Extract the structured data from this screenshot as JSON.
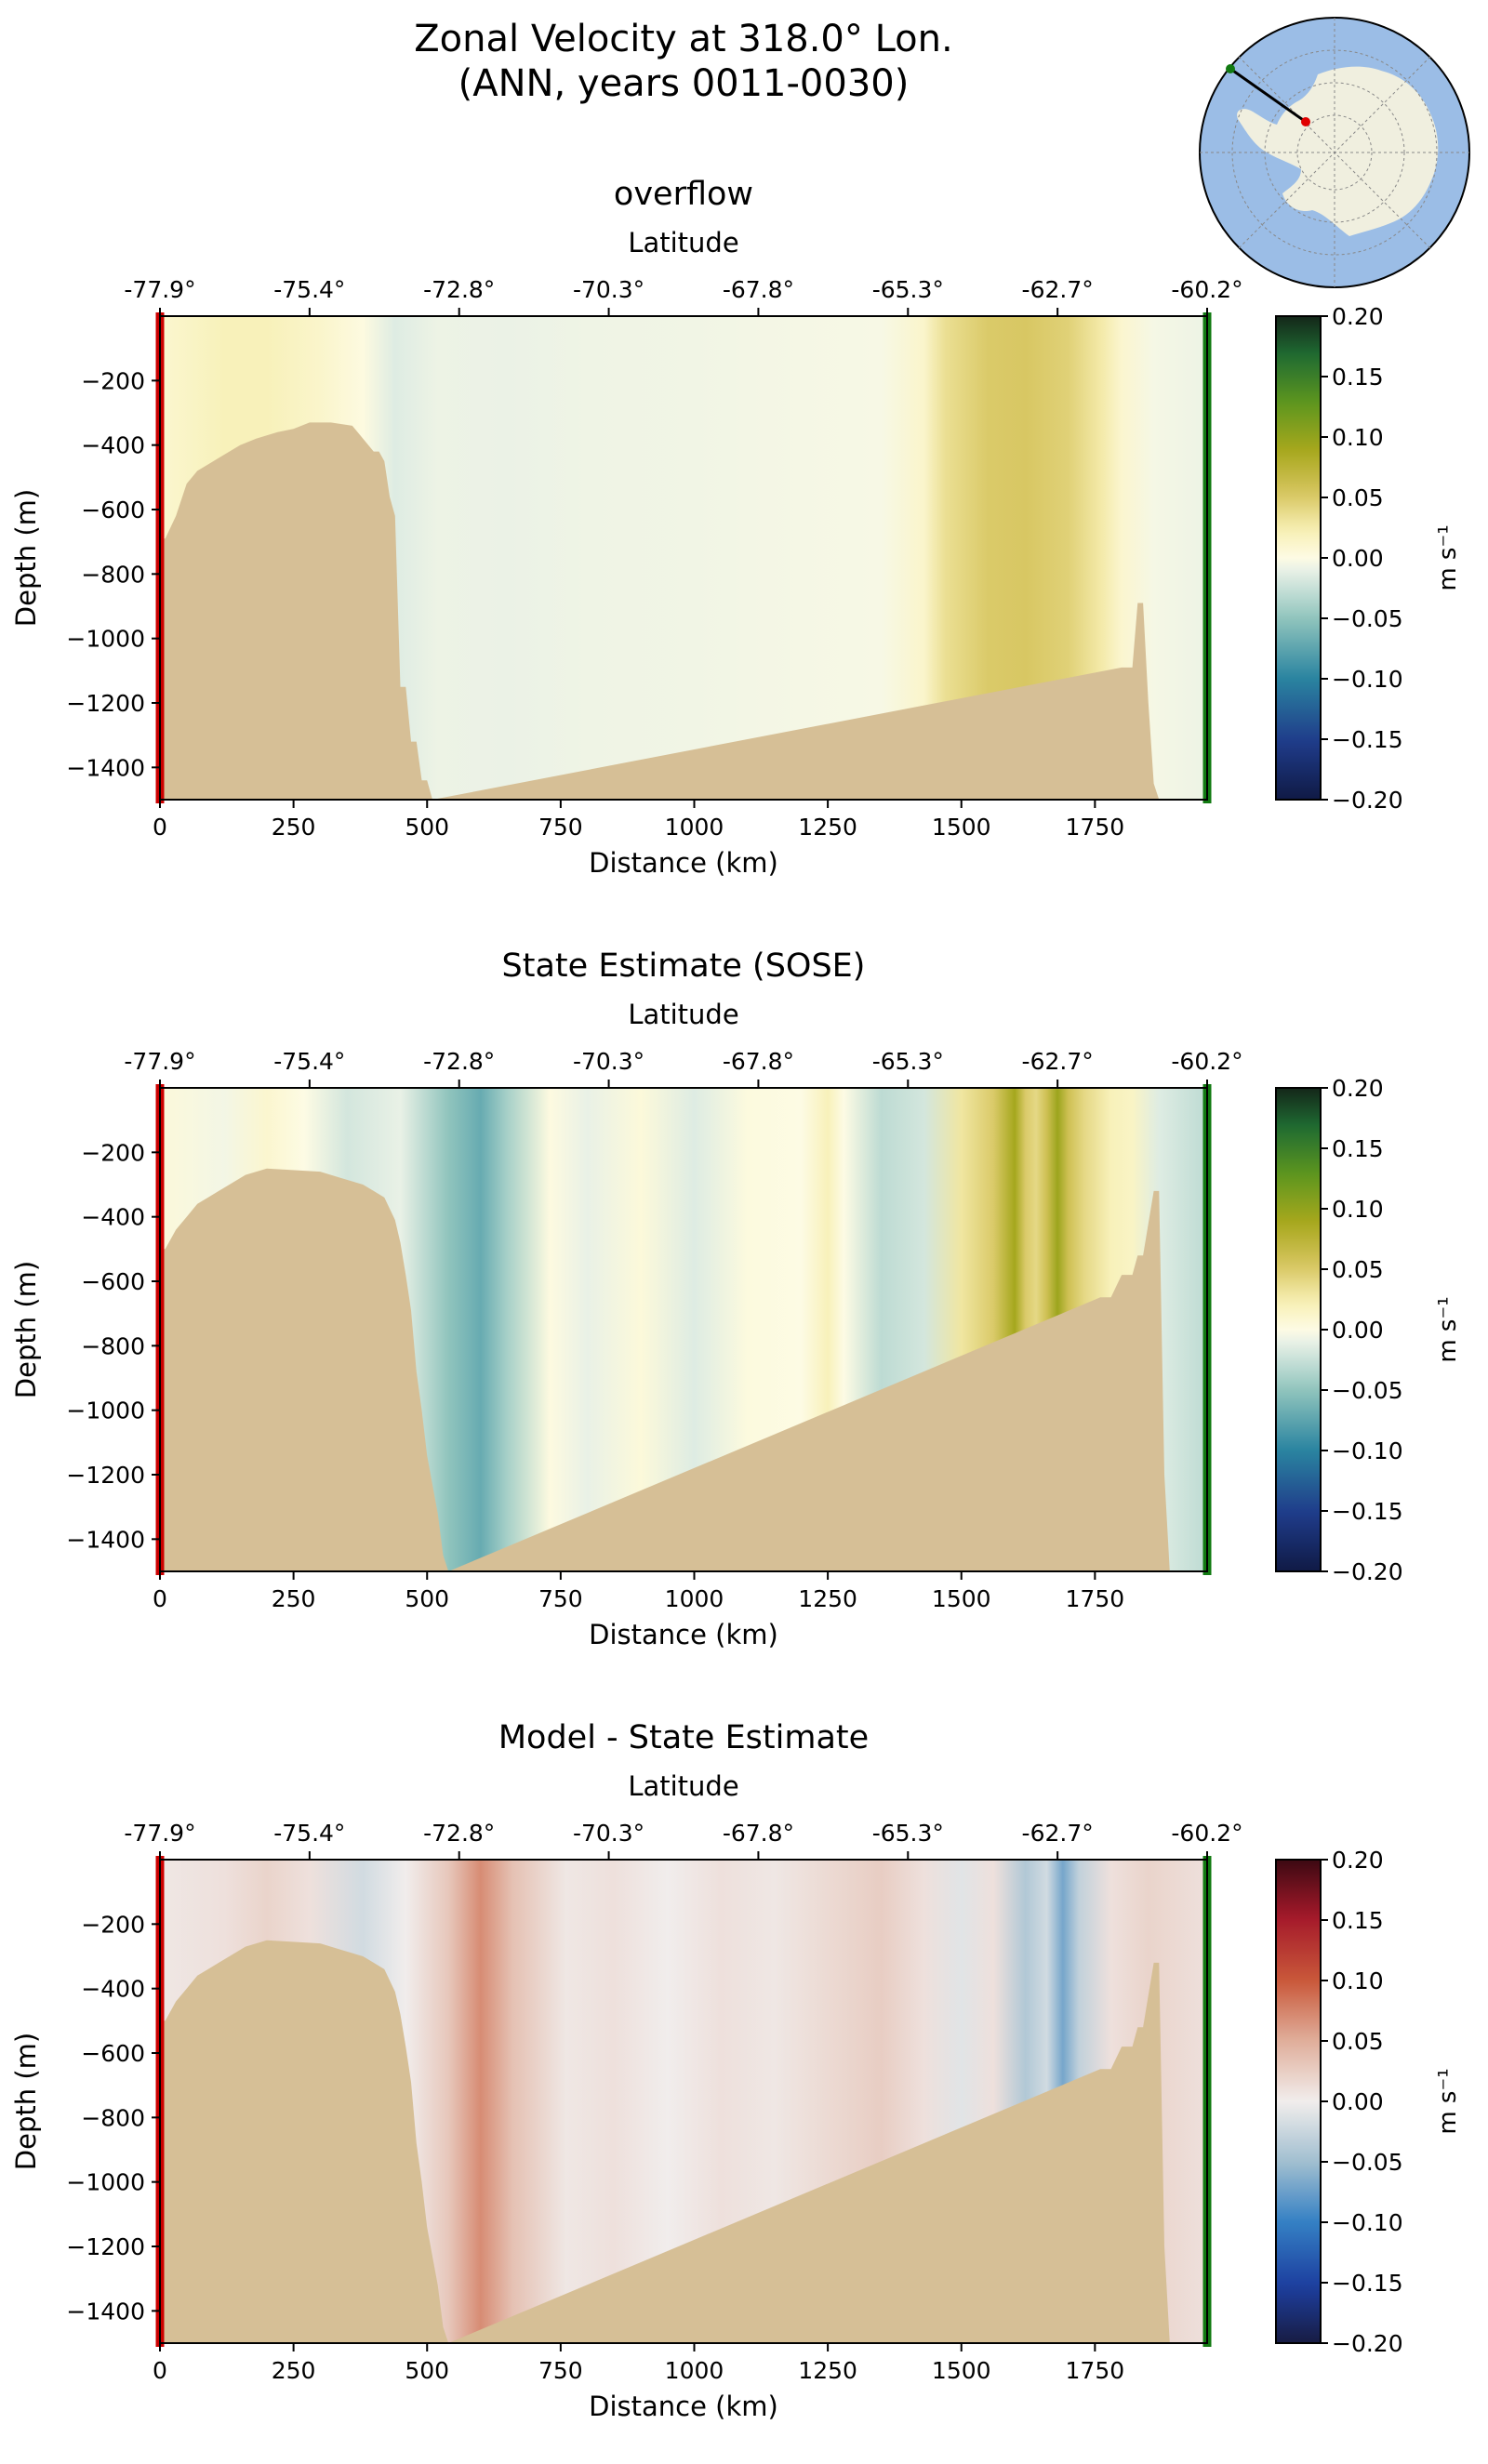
{
  "figure": {
    "title_line1": "Zonal Velocity at 318.0° Lon.",
    "title_line2": "(ANN, years 0011-0030)"
  },
  "colors": {
    "topography": "#d6bf96",
    "start_marker": "#cc0000",
    "end_marker": "#117a11",
    "ocean": "#9bbde6",
    "land": "#f0efdf"
  },
  "chart_data": [
    {
      "type": "heatmap",
      "title": "overflow",
      "xlabel": "Distance (km)",
      "ylabel": "Depth (m)",
      "top_axis_label": "Latitude",
      "xlim": [
        0,
        1960
      ],
      "ylim": [
        -1500,
        0
      ],
      "x_ticks": [
        0,
        250,
        500,
        750,
        1000,
        1250,
        1500,
        1750
      ],
      "y_ticks": [
        -200,
        -400,
        -600,
        -800,
        -1000,
        -1200,
        -1400
      ],
      "lat_ticks": [
        {
          "km": 0,
          "label": "-77.9°"
        },
        {
          "km": 280,
          "label": "-75.4°"
        },
        {
          "km": 560,
          "label": "-72.8°"
        },
        {
          "km": 840,
          "label": "-70.3°"
        },
        {
          "km": 1120,
          "label": "-67.8°"
        },
        {
          "km": 1400,
          "label": "-65.3°"
        },
        {
          "km": 1680,
          "label": "-62.7°"
        },
        {
          "km": 1960,
          "label": "-60.2°"
        }
      ],
      "colorbar": {
        "label": "m s⁻¹",
        "ticks": [
          "0.20",
          "0.15",
          "0.10",
          "0.05",
          "0.00",
          "−0.05",
          "−0.10",
          "−0.15",
          "−0.20"
        ],
        "range": [
          -0.2,
          0.2
        ],
        "colormap": "delta"
      },
      "velocity_profile_km": [
        0,
        60,
        120,
        200,
        300,
        380,
        440,
        520,
        650,
        800,
        1000,
        1200,
        1350,
        1430,
        1470,
        1550,
        1620,
        1700,
        1760,
        1800,
        1860,
        1960
      ],
      "velocity_profile_ms": [
        0.01,
        0.015,
        0.02,
        0.02,
        0.012,
        0.002,
        -0.015,
        -0.008,
        -0.009,
        -0.007,
        -0.006,
        -0.004,
        -0.003,
        0.012,
        0.035,
        0.05,
        0.052,
        0.045,
        0.028,
        0.01,
        -0.004,
        -0.008
      ],
      "bathymetry_km": [
        0,
        10,
        30,
        50,
        70,
        90,
        110,
        130,
        150,
        180,
        200,
        220,
        250,
        280,
        320,
        360,
        400,
        410,
        420,
        430,
        440,
        450,
        460,
        470,
        480,
        490,
        500,
        510,
        1800,
        1820,
        1830,
        1840,
        1850,
        1860,
        1870,
        1960
      ],
      "bathymetry_depth": [
        -690,
        -690,
        -620,
        -520,
        -480,
        -460,
        -440,
        -420,
        -400,
        -380,
        -370,
        -360,
        -350,
        -330,
        -330,
        -340,
        -420,
        -420,
        -450,
        -560,
        -620,
        -1150,
        -1150,
        -1320,
        -1320,
        -1440,
        -1440,
        -1500,
        -1090,
        -1090,
        -890,
        -890,
        -1200,
        -1450,
        -1500,
        -1500
      ]
    },
    {
      "type": "heatmap",
      "title": "State Estimate (SOSE)",
      "xlabel": "Distance (km)",
      "ylabel": "Depth (m)",
      "top_axis_label": "Latitude",
      "xlim": [
        0,
        1960
      ],
      "ylim": [
        -1500,
        0
      ],
      "x_ticks": [
        0,
        250,
        500,
        750,
        1000,
        1250,
        1500,
        1750
      ],
      "y_ticks": [
        -200,
        -400,
        -600,
        -800,
        -1000,
        -1200,
        -1400
      ],
      "lat_ticks": [
        {
          "km": 0,
          "label": "-77.9°"
        },
        {
          "km": 280,
          "label": "-75.4°"
        },
        {
          "km": 560,
          "label": "-72.8°"
        },
        {
          "km": 840,
          "label": "-70.3°"
        },
        {
          "km": 1120,
          "label": "-67.8°"
        },
        {
          "km": 1400,
          "label": "-65.3°"
        },
        {
          "km": 1680,
          "label": "-62.7°"
        },
        {
          "km": 1960,
          "label": "-60.2°"
        }
      ],
      "colorbar": {
        "label": "m s⁻¹",
        "ticks": [
          "0.20",
          "0.15",
          "0.10",
          "0.05",
          "0.00",
          "−0.05",
          "−0.10",
          "−0.15",
          "−0.20"
        ],
        "range": [
          -0.2,
          0.2
        ],
        "colormap": "delta"
      },
      "velocity_profile_km": [
        0,
        120,
        200,
        270,
        350,
        450,
        540,
        600,
        650,
        730,
        800,
        900,
        1000,
        1100,
        1200,
        1250,
        1280,
        1350,
        1430,
        1500,
        1560,
        1600,
        1620,
        1640,
        1660,
        1680,
        1700,
        1730,
        1780,
        1820,
        1870,
        1960
      ],
      "velocity_profile_ms": [
        0.005,
        -0.005,
        0.01,
        0.0,
        -0.02,
        -0.01,
        -0.05,
        -0.07,
        -0.04,
        0.002,
        -0.01,
        0.005,
        -0.015,
        0.003,
        0.0,
        0.02,
        0.0,
        -0.03,
        -0.02,
        0.03,
        0.05,
        0.09,
        0.05,
        0.04,
        0.06,
        0.095,
        0.06,
        0.04,
        0.02,
        0.015,
        -0.015,
        -0.03
      ],
      "bathymetry_km": [
        0,
        10,
        30,
        50,
        70,
        90,
        110,
        130,
        160,
        200,
        300,
        340,
        380,
        400,
        420,
        440,
        450,
        460,
        470,
        480,
        490,
        500,
        520,
        530,
        540,
        1760,
        1780,
        1800,
        1820,
        1830,
        1840,
        1860,
        1870,
        1880,
        1890,
        1900,
        1960
      ],
      "bathymetry_depth": [
        -500,
        -500,
        -440,
        -400,
        -360,
        -340,
        -320,
        -300,
        -270,
        -250,
        -260,
        -280,
        -300,
        -320,
        -340,
        -410,
        -480,
        -580,
        -690,
        -880,
        -1000,
        -1140,
        -1320,
        -1450,
        -1500,
        -650,
        -650,
        -580,
        -580,
        -520,
        -520,
        -320,
        -320,
        -1200,
        -1500,
        -1500,
        -1500
      ]
    },
    {
      "type": "heatmap",
      "title": "Model - State Estimate",
      "xlabel": "Distance (km)",
      "ylabel": "Depth (m)",
      "top_axis_label": "Latitude",
      "xlim": [
        0,
        1960
      ],
      "ylim": [
        -1500,
        0
      ],
      "x_ticks": [
        0,
        250,
        500,
        750,
        1000,
        1250,
        1500,
        1750
      ],
      "y_ticks": [
        -200,
        -400,
        -600,
        -800,
        -1000,
        -1200,
        -1400
      ],
      "lat_ticks": [
        {
          "km": 0,
          "label": "-77.9°"
        },
        {
          "km": 280,
          "label": "-75.4°"
        },
        {
          "km": 560,
          "label": "-72.8°"
        },
        {
          "km": 840,
          "label": "-70.3°"
        },
        {
          "km": 1120,
          "label": "-67.8°"
        },
        {
          "km": 1400,
          "label": "-65.3°"
        },
        {
          "km": 1680,
          "label": "-62.7°"
        },
        {
          "km": 1960,
          "label": "-60.2°"
        }
      ],
      "colorbar": {
        "label": "m s⁻¹",
        "ticks": [
          "0.20",
          "0.15",
          "0.10",
          "0.05",
          "0.00",
          "−0.05",
          "−0.10",
          "−0.15",
          "−0.20"
        ],
        "range": [
          -0.2,
          0.2
        ],
        "colormap": "balance"
      },
      "velocity_profile_km": [
        0,
        120,
        200,
        280,
        380,
        460,
        540,
        600,
        660,
        760,
        850,
        950,
        1050,
        1150,
        1250,
        1350,
        1430,
        1500,
        1560,
        1620,
        1660,
        1690,
        1720,
        1780,
        1850,
        1960
      ],
      "velocity_profile_ms": [
        0.005,
        0.01,
        0.02,
        0.01,
        -0.02,
        0.0,
        0.03,
        0.07,
        0.035,
        0.005,
        0.01,
        0.0,
        0.01,
        0.005,
        0.015,
        0.025,
        0.01,
        -0.01,
        0.01,
        -0.04,
        -0.02,
        -0.07,
        -0.03,
        0.01,
        0.02,
        0.01
      ],
      "bathymetry_km": [
        0,
        10,
        30,
        50,
        70,
        90,
        110,
        130,
        160,
        200,
        300,
        340,
        380,
        400,
        420,
        440,
        450,
        460,
        470,
        480,
        490,
        500,
        520,
        530,
        540,
        1760,
        1780,
        1800,
        1820,
        1830,
        1840,
        1860,
        1870,
        1880,
        1890,
        1900,
        1960
      ],
      "bathymetry_depth": [
        -500,
        -500,
        -440,
        -400,
        -360,
        -340,
        -320,
        -300,
        -270,
        -250,
        -260,
        -280,
        -300,
        -320,
        -340,
        -410,
        -480,
        -580,
        -690,
        -880,
        -1000,
        -1140,
        -1320,
        -1450,
        -1500,
        -650,
        -650,
        -580,
        -580,
        -520,
        -520,
        -320,
        -320,
        -1200,
        -1500,
        -1500,
        -1500
      ]
    }
  ]
}
